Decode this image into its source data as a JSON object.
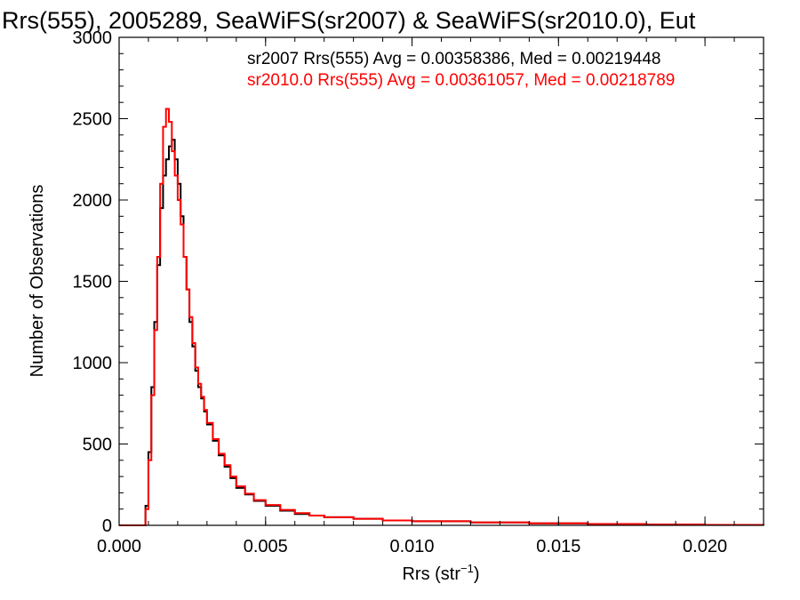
{
  "chart_data": {
    "type": "line",
    "title": "Rrs(555), 2005289, SeaWiFS(sr2007) & SeaWiFS(sr2010.0), Eut",
    "xlabel": "Rrs (str",
    "xlabel_sup": "−1",
    "xlabel_close": ")",
    "ylabel": "Number of Observations",
    "xlim": [
      0.0,
      0.022
    ],
    "ylim": [
      0,
      3000
    ],
    "x_ticks": [
      0.0,
      0.005,
      0.01,
      0.015,
      0.02
    ],
    "x_tick_labels": [
      "0.000",
      "0.005",
      "0.010",
      "0.015",
      "0.020"
    ],
    "y_ticks": [
      0,
      500,
      1000,
      1500,
      2000,
      2500,
      3000
    ],
    "y_tick_labels": [
      "0",
      "500",
      "1000",
      "1500",
      "2000",
      "2500",
      "3000"
    ],
    "grid": false,
    "annotations": [
      {
        "text": "sr2007 Rrs(555) Avg = 0.00358386, Med = 0.00219448",
        "color": "#000000"
      },
      {
        "text": "sr2010.0 Rrs(555) Avg = 0.00361057, Med = 0.00218789",
        "color": "#ff0000"
      }
    ],
    "series": [
      {
        "color": "#000000",
        "x": [
          0.0,
          0.0008,
          0.0009,
          0.001,
          0.0011,
          0.0012,
          0.0013,
          0.0014,
          0.0015,
          0.0016,
          0.0017,
          0.0018,
          0.0019,
          0.002,
          0.0021,
          0.0022,
          0.0023,
          0.0024,
          0.0025,
          0.0026,
          0.0027,
          0.0028,
          0.0029,
          0.003,
          0.0032,
          0.0034,
          0.0036,
          0.0038,
          0.004,
          0.0043,
          0.0046,
          0.005,
          0.0055,
          0.006,
          0.0065,
          0.007,
          0.008,
          0.009,
          0.01,
          0.012,
          0.014,
          0.016,
          0.018,
          0.02,
          0.022
        ],
        "y": [
          0,
          0,
          120,
          450,
          850,
          1250,
          1600,
          1950,
          2150,
          2250,
          2330,
          2370,
          2250,
          2100,
          1900,
          1650,
          1450,
          1250,
          1100,
          950,
          850,
          780,
          700,
          620,
          520,
          430,
          360,
          290,
          230,
          190,
          150,
          120,
          90,
          70,
          60,
          50,
          40,
          30,
          25,
          18,
          12,
          8,
          5,
          3,
          2
        ]
      },
      {
        "color": "#ff0000",
        "x": [
          0.0,
          0.0008,
          0.0009,
          0.001,
          0.0011,
          0.0012,
          0.0013,
          0.0014,
          0.0015,
          0.0016,
          0.0017,
          0.0018,
          0.0019,
          0.002,
          0.0021,
          0.0022,
          0.0023,
          0.0024,
          0.0025,
          0.0026,
          0.0027,
          0.0028,
          0.0029,
          0.003,
          0.0032,
          0.0034,
          0.0036,
          0.0038,
          0.004,
          0.0043,
          0.0046,
          0.005,
          0.0055,
          0.006,
          0.0065,
          0.007,
          0.008,
          0.009,
          0.01,
          0.012,
          0.014,
          0.016,
          0.018,
          0.02,
          0.022
        ],
        "y": [
          0,
          0,
          100,
          400,
          800,
          1200,
          1650,
          2100,
          2450,
          2560,
          2480,
          2300,
          2150,
          2000,
          1850,
          1650,
          1450,
          1280,
          1120,
          970,
          870,
          790,
          710,
          630,
          530,
          440,
          370,
          300,
          240,
          195,
          155,
          125,
          95,
          75,
          60,
          50,
          40,
          30,
          25,
          18,
          12,
          8,
          5,
          3,
          2
        ]
      }
    ]
  }
}
